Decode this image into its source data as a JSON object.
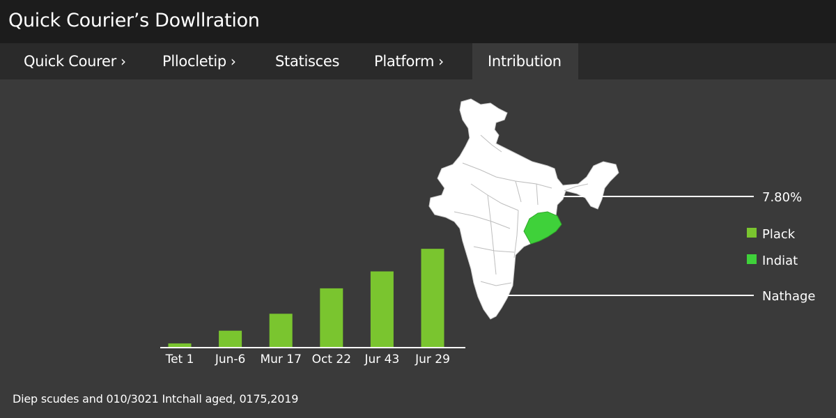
{
  "app": {
    "title": "Quick Courier’s Dowllration"
  },
  "tabs": [
    {
      "label": "Quick Courer",
      "has_chevron": true
    },
    {
      "label": "Pllocletip",
      "has_chevron": true
    },
    {
      "label": "Statisces",
      "has_chevron": false
    },
    {
      "label": "Platform",
      "has_chevron": true
    },
    {
      "label": "Intribution",
      "has_chevron": false,
      "active": true
    }
  ],
  "chevron_glyph": "›",
  "colors": {
    "background": "#3a3a3a",
    "titlebar": "#1c1c1c",
    "tabbar": "#2a2a2a",
    "bar_green": "#7ac52f",
    "highlight_green": "#3fd13a",
    "map_fill": "#ffffff"
  },
  "chart_data": {
    "type": "bar",
    "categories": [
      "Tet 1",
      "Jun-6",
      "Mur 17",
      "Oct 22",
      "Jur 43",
      "Jur 29"
    ],
    "values": [
      3,
      12,
      24,
      42,
      54,
      70
    ],
    "ylim": [
      0,
      75
    ],
    "grid": false,
    "legend": {
      "placement": "right",
      "entries": [
        {
          "label": "Plack",
          "color": "#7ac52f"
        },
        {
          "label": "Indiat",
          "color": "#3fd13a"
        }
      ]
    },
    "annotations": [
      {
        "text": "7.80%",
        "points_to": "north-east region"
      },
      {
        "text": "Nathage",
        "points_to": "south region"
      }
    ]
  },
  "map": {
    "icon": "india-map-icon",
    "highlighted_region": "odisha"
  },
  "footer": {
    "text": "Diep scudes and 010/3021 Intchall aged, 0175,2019"
  }
}
